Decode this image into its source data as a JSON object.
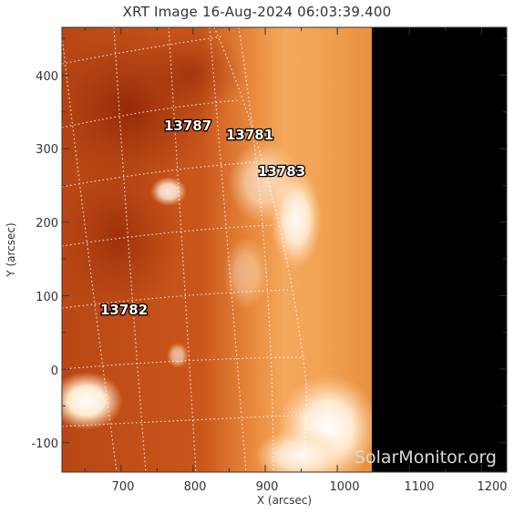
{
  "title": "XRT Image 16-Aug-2024 06:03:39.400",
  "x_axis": {
    "label": "X (arcsec)",
    "ticks": [
      "700",
      "800",
      "900",
      "1000",
      "1100",
      "1200"
    ],
    "tick_values": [
      700,
      800,
      900,
      1000,
      1100,
      1200
    ],
    "range": [
      618,
      1235
    ]
  },
  "y_axis": {
    "label": "Y (arcsec)",
    "ticks": [
      "-100",
      "0",
      "100",
      "200",
      "300",
      "400"
    ],
    "tick_values": [
      -100,
      0,
      100,
      200,
      300,
      400
    ],
    "range": [
      -140,
      465
    ]
  },
  "active_regions": [
    {
      "id": "13787",
      "x": 777,
      "y": 328
    },
    {
      "id": "13781",
      "x": 853,
      "y": 318
    },
    {
      "id": "13783",
      "x": 903,
      "y": 282
    },
    {
      "id": "13782",
      "x": 705,
      "y": 85
    }
  ],
  "watermark": "SolarMonitor.org",
  "colors": {
    "disk_dark": "#9a2a08",
    "disk_mid": "#c8551a",
    "limb_bright": "#f6b06c",
    "off_limb": "#ee9a4c",
    "no_data": "#000000",
    "grid": "#ffffff"
  }
}
